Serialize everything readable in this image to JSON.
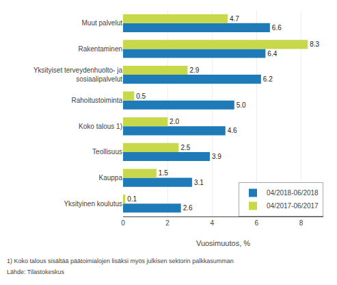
{
  "chart_data": {
    "type": "bar",
    "orientation": "horizontal",
    "categories": [
      "Muut palvelut",
      "Rakentaminen",
      "Yksityiset terveydenhuolto- ja\nsosiaalipalvelut",
      "Rahoitustoiminta",
      "Koko talous 1)",
      "Teollisuus",
      "Kauppa",
      "Yksityinen koulutus"
    ],
    "series": [
      {
        "name": "04/2018-06/2018",
        "color": "#1F7AB8",
        "values": [
          6.6,
          6.4,
          6.2,
          5.0,
          4.6,
          3.9,
          3.1,
          2.6
        ],
        "value_labels": [
          "6.6",
          "6.4",
          "6.2",
          "5.0",
          "4.6",
          "3.9",
          "3.1",
          "2.6"
        ]
      },
      {
        "name": "04/2017-06/2017",
        "color": "#C8D84B",
        "values": [
          4.7,
          8.3,
          2.9,
          0.5,
          2.0,
          2.5,
          1.5,
          0.1
        ],
        "value_labels": [
          "4.7",
          "8.3",
          "2.9",
          "0.5",
          "2.0",
          "2.5",
          "1.5",
          "0.1"
        ]
      }
    ],
    "xlabel": "Vuosimuutos, %",
    "xlim": [
      0,
      9
    ],
    "xticks": [
      0,
      2,
      4,
      6,
      8
    ],
    "grid": true,
    "legend": "lower right",
    "data_labels": true,
    "annotations": [
      "1) Koko talous sisältää päätoimialojen lisäksi myös julkisen sektorin palkkasumman",
      "Lähde: Tilastokeskus"
    ]
  }
}
